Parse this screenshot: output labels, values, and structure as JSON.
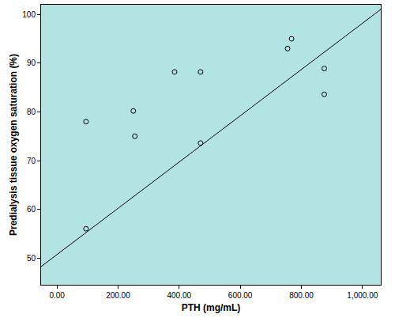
{
  "chart_data": {
    "type": "scatter",
    "x_label": "PTH (mg/mL)",
    "y_label": "Predialysis tissue oxygen saturation (%)",
    "x": [
      95,
      95,
      250,
      255,
      385,
      470,
      470,
      755,
      768,
      875,
      875
    ],
    "values": [
      56,
      78,
      80.2,
      75,
      88.2,
      88.2,
      73.6,
      93,
      95,
      88.9,
      83.6
    ],
    "color": "#000000",
    "marker": "circle-open",
    "trend": {
      "slope": 0.0475,
      "intercept": 50.7
    },
    "xlim": [
      -52,
      1060
    ],
    "ylim": [
      44.5,
      102
    ],
    "xticks": [
      {
        "value": 0,
        "label": "0.00"
      },
      {
        "value": 200,
        "label": "200.00"
      },
      {
        "value": 400,
        "label": "400.00"
      },
      {
        "value": 600,
        "label": "600.00"
      },
      {
        "value": 800,
        "label": "800.00"
      },
      {
        "value": 1000,
        "label": "1,000.00"
      }
    ],
    "yticks": [
      50,
      60,
      70,
      80,
      90,
      100
    ],
    "grid": false
  }
}
